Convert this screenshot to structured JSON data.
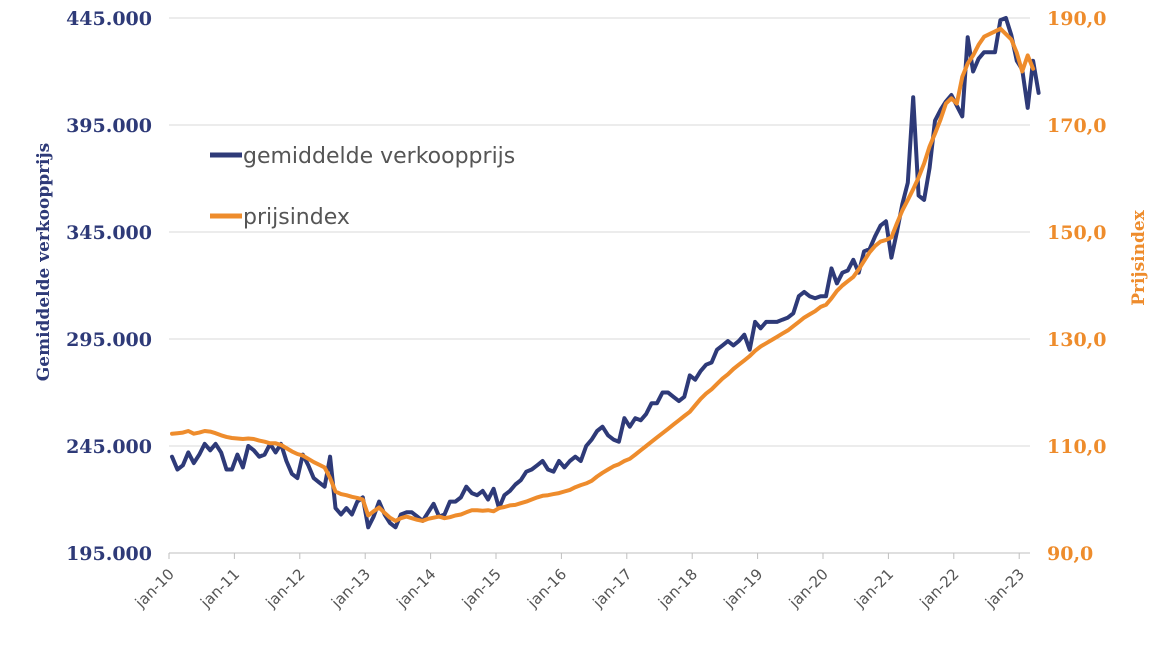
{
  "chart_data": {
    "type": "line",
    "x_tick_labels": [
      "jan-10",
      "jan-11",
      "jan-12",
      "jan-13",
      "jan-14",
      "jan-15",
      "jan-16",
      "jan-17",
      "jan-18",
      "jan-19",
      "jan-20",
      "jan-21",
      "jan-22",
      "jan-23"
    ],
    "y_left": {
      "label": "Gemiddelde verkoopprijs",
      "range": [
        195000,
        445000
      ],
      "ticks": [
        195000,
        245000,
        295000,
        345000,
        395000,
        445000
      ],
      "tick_labels": [
        "195.000",
        "245.000",
        "295.000",
        "345.000",
        "395.000",
        "445.000"
      ]
    },
    "y_right": {
      "label": "Prijsindex",
      "range": [
        90,
        190
      ],
      "ticks": [
        90,
        110,
        130,
        150,
        170,
        190
      ],
      "tick_labels": [
        "90,0",
        "110,0",
        "130,0",
        "150,0",
        "170,0",
        "190,0"
      ]
    },
    "grid": true,
    "legend_position": "upper-left",
    "series": [
      {
        "name": "gemiddelde verkoopprijs",
        "axis": "left",
        "color": "#2e3a78",
        "values": [
          240000,
          234000,
          236000,
          242000,
          237000,
          241000,
          246000,
          243000,
          246000,
          242000,
          234000,
          234000,
          241000,
          235000,
          245000,
          243000,
          240000,
          241000,
          246000,
          242000,
          246000,
          238000,
          232000,
          230000,
          241000,
          236000,
          230000,
          228000,
          226000,
          240000,
          216000,
          213000,
          216000,
          213000,
          219000,
          221000,
          207000,
          212000,
          219000,
          213000,
          209000,
          207000,
          213000,
          214000,
          214000,
          212000,
          210000,
          214000,
          218000,
          212000,
          213000,
          219000,
          219000,
          221000,
          226000,
          223000,
          222000,
          224000,
          220000,
          225000,
          216000,
          222000,
          224000,
          227000,
          229000,
          233000,
          234000,
          236000,
          238000,
          234000,
          233000,
          238000,
          235000,
          238000,
          240000,
          238000,
          245000,
          248000,
          252000,
          254000,
          250000,
          248000,
          247000,
          258000,
          254000,
          258000,
          257000,
          260000,
          265000,
          265000,
          270000,
          270000,
          268000,
          266000,
          268000,
          278000,
          276000,
          280000,
          283000,
          284000,
          290000,
          292000,
          294000,
          292000,
          294000,
          297000,
          290000,
          303000,
          300000,
          303000,
          303000,
          303000,
          304000,
          305000,
          307000,
          315000,
          317000,
          315000,
          314000,
          315000,
          315000,
          328000,
          321000,
          326000,
          327000,
          332000,
          326000,
          336000,
          337000,
          343000,
          348000,
          350000,
          333000,
          345000,
          358000,
          368000,
          408000,
          362000,
          360000,
          375000,
          397000,
          402000,
          406000,
          409000,
          404000,
          399000,
          436000,
          420000,
          426000,
          429000,
          429000,
          429000,
          444000,
          445000,
          437000,
          425000,
          421000,
          403000,
          425000,
          410000
        ]
      },
      {
        "name": "prijsindex",
        "axis": "right",
        "color": "#ee8c2c",
        "values": [
          112.3,
          112.4,
          112.5,
          112.8,
          112.3,
          112.5,
          112.8,
          112.7,
          112.4,
          112.0,
          111.7,
          111.5,
          111.4,
          111.3,
          111.4,
          111.3,
          111.0,
          110.8,
          110.5,
          110.5,
          110.2,
          109.6,
          109.0,
          108.5,
          108.2,
          107.6,
          107.0,
          106.5,
          106.0,
          104.0,
          101.5,
          101.0,
          100.8,
          100.5,
          100.3,
          100.0,
          97.0,
          97.8,
          98.5,
          97.5,
          96.6,
          96.0,
          96.5,
          96.8,
          96.5,
          96.2,
          96.0,
          96.4,
          96.6,
          96.8,
          96.5,
          96.7,
          97.0,
          97.2,
          97.6,
          98.0,
          98.0,
          97.9,
          98.0,
          97.8,
          98.4,
          98.6,
          98.9,
          99.0,
          99.3,
          99.6,
          100.0,
          100.4,
          100.7,
          100.8,
          101.0,
          101.2,
          101.5,
          101.8,
          102.3,
          102.7,
          103.0,
          103.5,
          104.3,
          105.0,
          105.6,
          106.2,
          106.6,
          107.2,
          107.6,
          108.4,
          109.2,
          110.0,
          110.8,
          111.6,
          112.4,
          113.2,
          114.0,
          114.8,
          115.6,
          116.4,
          117.6,
          118.8,
          119.8,
          120.6,
          121.6,
          122.6,
          123.4,
          124.4,
          125.2,
          126.0,
          126.8,
          127.8,
          128.6,
          129.2,
          129.8,
          130.4,
          131.0,
          131.6,
          132.4,
          133.2,
          134.0,
          134.6,
          135.2,
          136.0,
          136.4,
          137.6,
          139.0,
          140.0,
          140.8,
          141.6,
          143.0,
          144.6,
          146.2,
          147.4,
          148.2,
          148.5,
          149.0,
          151.6,
          154.0,
          156.0,
          158.0,
          160.2,
          162.8,
          166.0,
          168.4,
          171.0,
          174.0,
          175.0,
          174.0,
          179.0,
          181.5,
          183.0,
          185.0,
          186.5,
          187.0,
          187.5,
          188.0,
          187.0,
          186.0,
          183.5,
          180.0,
          183.0,
          180.5
        ]
      }
    ]
  }
}
